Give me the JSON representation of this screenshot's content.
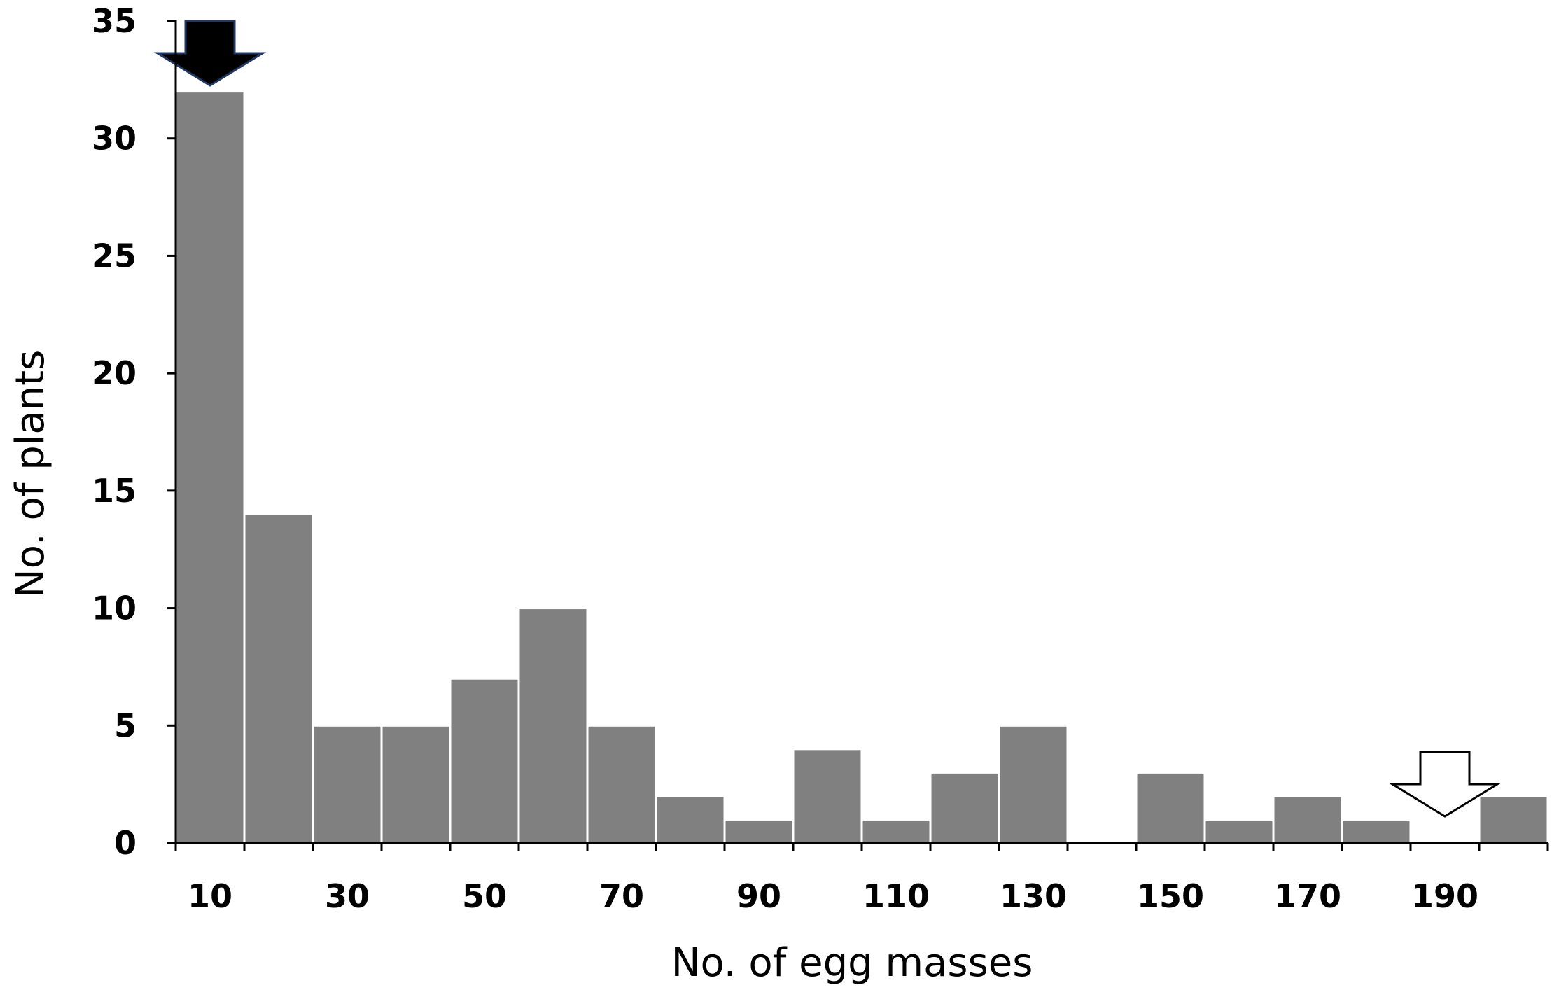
{
  "chart_data": {
    "type": "bar",
    "title": "",
    "xlabel": "No. of egg masses",
    "ylabel": "No. of plants",
    "ylim": [
      0,
      35
    ],
    "yticks": [
      "0",
      "5",
      "10",
      "15",
      "20",
      "25",
      "30",
      "35"
    ],
    "xtick_labels": [
      "10",
      "30",
      "50",
      "70",
      "90",
      "110",
      "130",
      "150",
      "170",
      "190"
    ],
    "bin_width": 10,
    "categories": [
      "10",
      "20",
      "30",
      "40",
      "50",
      "60",
      "70",
      "80",
      "90",
      "100",
      "110",
      "120",
      "130",
      "140",
      "150",
      "160",
      "170",
      "180",
      "190",
      "200"
    ],
    "values": [
      32,
      14,
      5,
      5,
      7,
      10,
      5,
      2,
      1,
      4,
      1,
      3,
      5,
      0,
      3,
      1,
      2,
      1,
      0,
      2
    ],
    "bar_color": "#808080",
    "grid": false,
    "annotations": [
      {
        "type": "arrow-down",
        "category": "10",
        "fill": "#000000"
      },
      {
        "type": "arrow-down",
        "category": "190",
        "fill": "#ffffff"
      }
    ]
  }
}
